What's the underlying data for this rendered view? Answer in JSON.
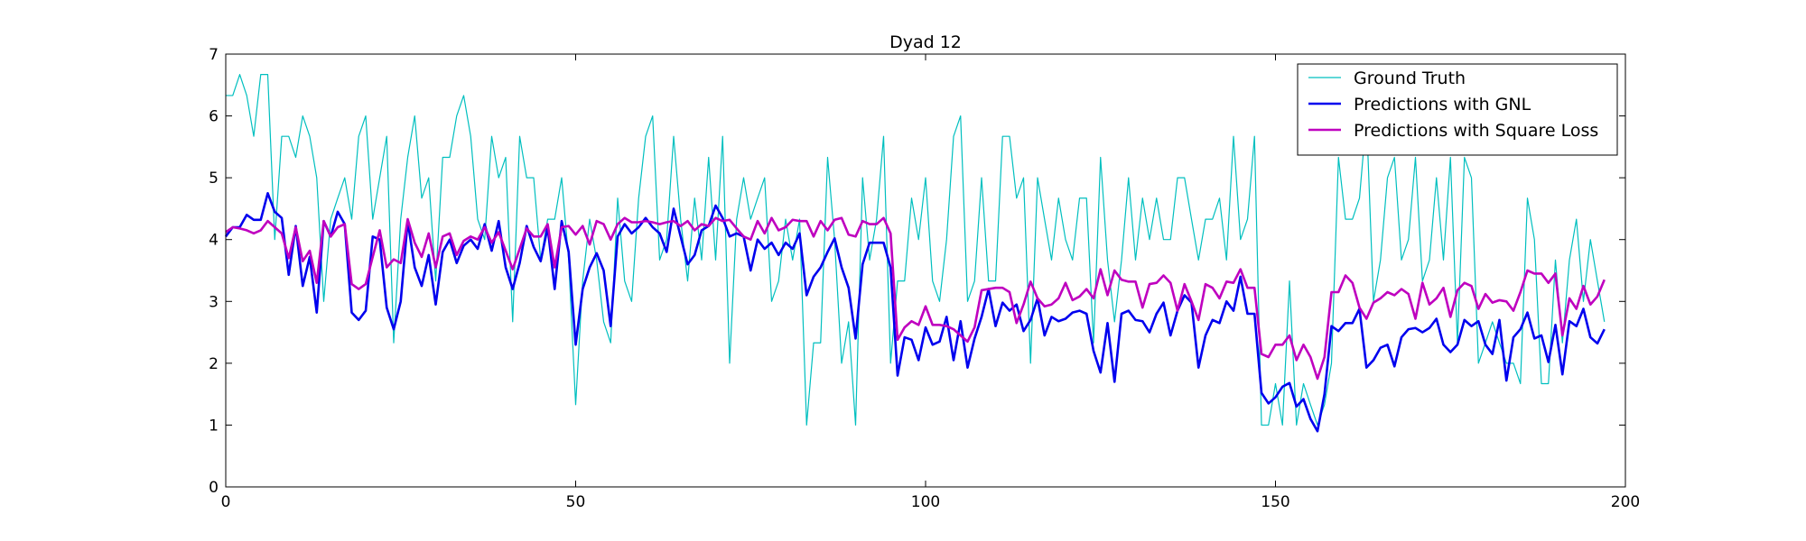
{
  "chart_data": {
    "type": "line",
    "title": "Dyad 12",
    "xlabel": "",
    "ylabel": "",
    "xlim": [
      0,
      200
    ],
    "ylim": [
      0,
      7
    ],
    "xticks": [
      0,
      50,
      100,
      150,
      200
    ],
    "yticks": [
      0,
      1,
      2,
      3,
      4,
      5,
      6,
      7
    ],
    "grid": false,
    "legend_position": "top-right",
    "series": [
      {
        "name": "Ground Truth",
        "color": "#00bfbf",
        "width": 1.2,
        "values": [
          6.33,
          6.33,
          6.67,
          6.33,
          5.67,
          6.67,
          6.67,
          4.0,
          5.67,
          5.67,
          5.33,
          6.0,
          5.67,
          5.0,
          3.0,
          4.33,
          4.67,
          5.0,
          4.33,
          5.67,
          6.0,
          4.33,
          5.0,
          5.67,
          2.33,
          4.33,
          5.33,
          6.0,
          4.67,
          5.0,
          3.33,
          5.33,
          5.33,
          6.0,
          6.33,
          5.67,
          4.33,
          4.0,
          5.67,
          5.0,
          5.33,
          2.67,
          5.67,
          5.0,
          5.0,
          3.67,
          4.33,
          4.33,
          5.0,
          3.67,
          1.33,
          3.33,
          4.33,
          3.67,
          2.67,
          2.33,
          4.67,
          3.33,
          3.0,
          4.67,
          5.67,
          6.0,
          3.67,
          4.0,
          5.67,
          4.33,
          3.33,
          4.67,
          3.67,
          5.33,
          3.67,
          5.67,
          2.0,
          4.33,
          5.0,
          4.33,
          4.67,
          5.0,
          3.0,
          3.33,
          4.33,
          3.67,
          4.33,
          1.0,
          2.33,
          2.33,
          5.33,
          4.0,
          2.0,
          2.67,
          1.0,
          5.0,
          3.67,
          4.33,
          5.67,
          2.0,
          3.33,
          3.33,
          4.67,
          4.0,
          5.0,
          3.33,
          3.0,
          4.0,
          5.67,
          6.0,
          3.0,
          3.33,
          5.0,
          3.33,
          3.33,
          5.67,
          5.67,
          4.67,
          5.0,
          2.0,
          5.0,
          4.33,
          3.67,
          4.67,
          4.0,
          3.67,
          4.67,
          4.67,
          2.33,
          5.33,
          3.67,
          2.67,
          3.67,
          5.0,
          3.67,
          4.67,
          4.0,
          4.67,
          4.0,
          4.0,
          5.0,
          5.0,
          4.33,
          3.67,
          4.33,
          4.33,
          4.67,
          3.67,
          5.67,
          4.0,
          4.33,
          5.67,
          1.0,
          1.0,
          1.67,
          1.0,
          3.33,
          1.0,
          1.67,
          1.33,
          1.0,
          1.33,
          2.0,
          5.33,
          4.33,
          4.33,
          4.67,
          6.0,
          3.0,
          3.67,
          5.0,
          5.33,
          3.67,
          4.0,
          5.33,
          3.33,
          3.67,
          5.0,
          3.67,
          5.33,
          2.33,
          5.33,
          5.0,
          2.0,
          2.33,
          2.67,
          2.33,
          2.0,
          2.0,
          1.67,
          4.67,
          4.0,
          1.67,
          1.67,
          3.67,
          2.33,
          3.67,
          4.33,
          3.0,
          4.0,
          3.33,
          2.67
        ]
      },
      {
        "name": "Predictions with GNL",
        "color": "#0000ee",
        "width": 2.6,
        "values": [
          4.05,
          4.2,
          4.2,
          4.4,
          4.32,
          4.32,
          4.75,
          4.45,
          4.35,
          3.43,
          4.22,
          3.25,
          3.72,
          2.82,
          4.3,
          4.05,
          4.45,
          4.25,
          2.82,
          2.7,
          2.85,
          4.05,
          4.0,
          2.9,
          2.55,
          3.0,
          4.3,
          3.55,
          3.25,
          3.75,
          2.95,
          3.8,
          4.0,
          3.62,
          3.9,
          4.0,
          3.85,
          4.25,
          3.82,
          4.3,
          3.55,
          3.2,
          3.62,
          4.22,
          3.88,
          3.65,
          4.2,
          3.2,
          4.3,
          3.8,
          2.3,
          3.2,
          3.55,
          3.78,
          3.5,
          2.6,
          4.05,
          4.25,
          4.1,
          4.2,
          4.35,
          4.2,
          4.1,
          3.8,
          4.5,
          4.05,
          3.6,
          3.75,
          4.15,
          4.22,
          4.55,
          4.35,
          4.05,
          4.1,
          4.05,
          3.5,
          4.0,
          3.85,
          3.95,
          3.75,
          3.95,
          3.85,
          4.1,
          3.1,
          3.4,
          3.55,
          3.8,
          4.02,
          3.55,
          3.22,
          2.4,
          3.6,
          3.95,
          3.95,
          3.95,
          3.55,
          1.8,
          2.42,
          2.38,
          2.05,
          2.58,
          2.3,
          2.35,
          2.75,
          2.05,
          2.68,
          1.93,
          2.4,
          2.75,
          3.2,
          2.6,
          2.98,
          2.85,
          2.95,
          2.52,
          2.7,
          3.05,
          2.45,
          2.75,
          2.68,
          2.72,
          2.82,
          2.85,
          2.8,
          2.2,
          1.85,
          2.65,
          1.7,
          2.8,
          2.85,
          2.7,
          2.68,
          2.5,
          2.8,
          2.98,
          2.45,
          2.85,
          3.1,
          2.98,
          1.93,
          2.45,
          2.7,
          2.65,
          3.0,
          2.85,
          3.4,
          2.8,
          2.8,
          1.52,
          1.35,
          1.45,
          1.62,
          1.68,
          1.3,
          1.42,
          1.1,
          0.9,
          1.5,
          2.6,
          2.52,
          2.65,
          2.65,
          2.88,
          1.93,
          2.05,
          2.25,
          2.3,
          1.95,
          2.42,
          2.55,
          2.57,
          2.5,
          2.57,
          2.72,
          2.3,
          2.18,
          2.3,
          2.7,
          2.6,
          2.68,
          2.3,
          2.15,
          2.7,
          1.72,
          2.42,
          2.55,
          2.82,
          2.4,
          2.45,
          2.02,
          2.62,
          1.82,
          2.68,
          2.6,
          2.88,
          2.42,
          2.32,
          2.55
        ]
      },
      {
        "name": "Predictions with Square Loss",
        "color": "#bf00bf",
        "width": 2.6,
        "values": [
          4.12,
          4.2,
          4.18,
          4.15,
          4.1,
          4.15,
          4.3,
          4.2,
          4.1,
          3.7,
          4.2,
          3.65,
          3.82,
          3.3,
          4.3,
          4.05,
          4.2,
          4.25,
          3.28,
          3.2,
          3.28,
          3.72,
          4.15,
          3.55,
          3.68,
          3.62,
          4.33,
          3.95,
          3.72,
          4.1,
          3.55,
          4.05,
          4.1,
          3.75,
          3.98,
          4.05,
          4.0,
          4.2,
          3.95,
          4.12,
          3.82,
          3.52,
          3.85,
          4.18,
          4.05,
          4.05,
          4.25,
          3.55,
          4.2,
          4.22,
          4.08,
          4.22,
          3.92,
          4.3,
          4.25,
          4.0,
          4.25,
          4.35,
          4.28,
          4.28,
          4.3,
          4.28,
          4.25,
          4.28,
          4.3,
          4.22,
          4.3,
          4.15,
          4.25,
          4.22,
          4.35,
          4.3,
          4.32,
          4.18,
          4.05,
          4.0,
          4.3,
          4.1,
          4.35,
          4.15,
          4.2,
          4.32,
          4.3,
          4.3,
          4.05,
          4.3,
          4.15,
          4.32,
          4.35,
          4.08,
          4.05,
          4.3,
          4.25,
          4.25,
          4.35,
          4.1,
          2.38,
          2.58,
          2.68,
          2.62,
          2.92,
          2.62,
          2.62,
          2.6,
          2.55,
          2.45,
          2.35,
          2.58,
          3.18,
          3.2,
          3.22,
          3.22,
          3.15,
          2.65,
          2.95,
          3.32,
          3.05,
          2.92,
          2.95,
          3.05,
          3.3,
          3.02,
          3.08,
          3.2,
          3.05,
          3.52,
          3.1,
          3.5,
          3.35,
          3.32,
          3.32,
          2.9,
          3.28,
          3.3,
          3.42,
          3.3,
          2.85,
          3.28,
          3.0,
          2.7,
          3.28,
          3.22,
          3.05,
          3.32,
          3.3,
          3.52,
          3.22,
          3.22,
          2.15,
          2.1,
          2.3,
          2.3,
          2.45,
          2.05,
          2.3,
          2.1,
          1.75,
          2.1,
          3.15,
          3.15,
          3.42,
          3.3,
          2.9,
          2.72,
          2.98,
          3.05,
          3.15,
          3.1,
          3.2,
          3.12,
          2.72,
          3.3,
          2.95,
          3.05,
          3.22,
          2.75,
          3.18,
          3.3,
          3.25,
          2.88,
          3.12,
          2.98,
          3.02,
          3.0,
          2.85,
          3.15,
          3.5,
          3.45,
          3.45,
          3.3,
          3.45,
          2.45,
          3.05,
          2.88,
          3.25,
          2.95,
          3.08,
          3.35
        ]
      }
    ]
  }
}
